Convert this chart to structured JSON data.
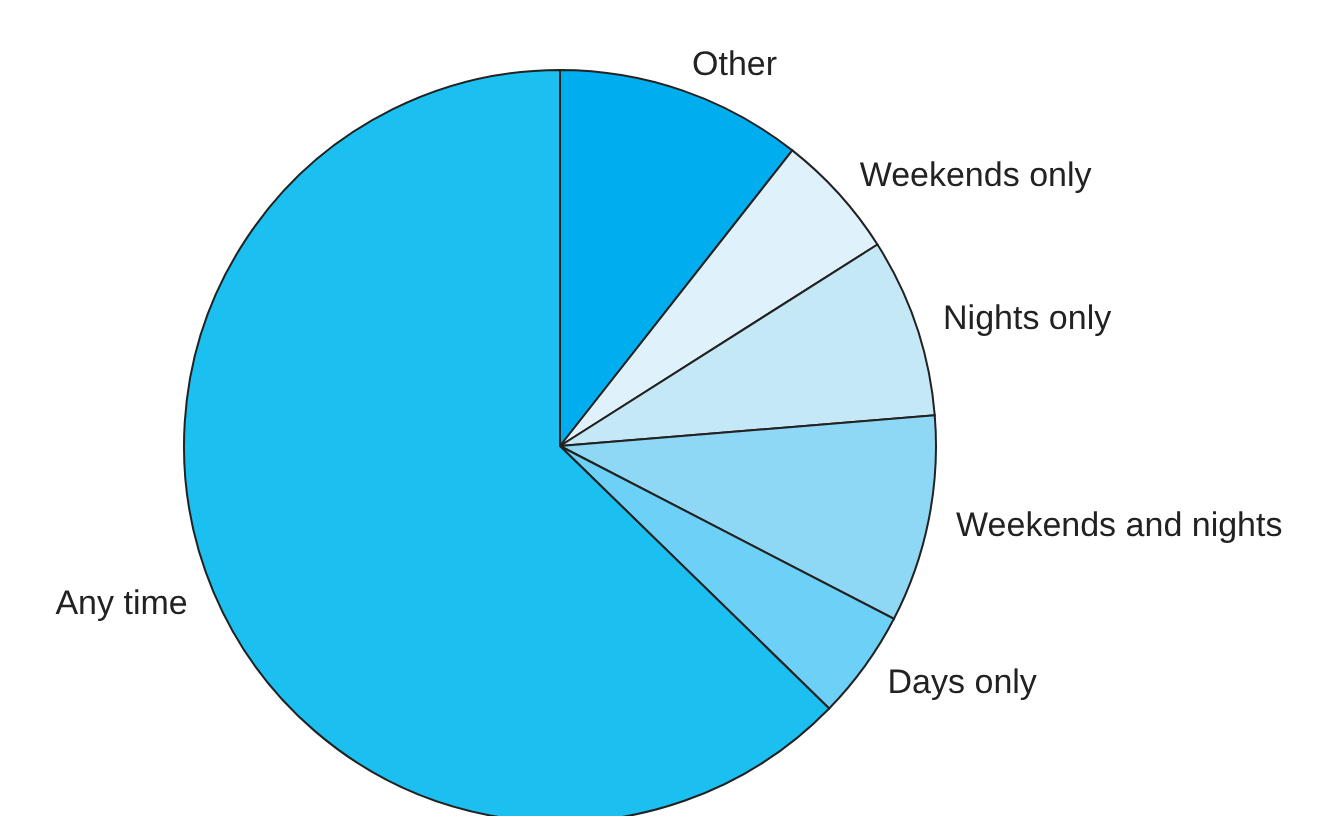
{
  "chart_data": {
    "type": "pie",
    "categories": [
      "Other",
      "Weekends only",
      "Nights only",
      "Weekends and nights",
      "Days only",
      "Any time"
    ],
    "values": [
      10.6,
      5.4,
      7.7,
      8.9,
      4.7,
      62.7
    ],
    "colors": [
      "#00aeef",
      "#dff2fb",
      "#c5e8f7",
      "#8fd8f5",
      "#6dd0f6",
      "#1bbff0"
    ],
    "legend": false
  }
}
